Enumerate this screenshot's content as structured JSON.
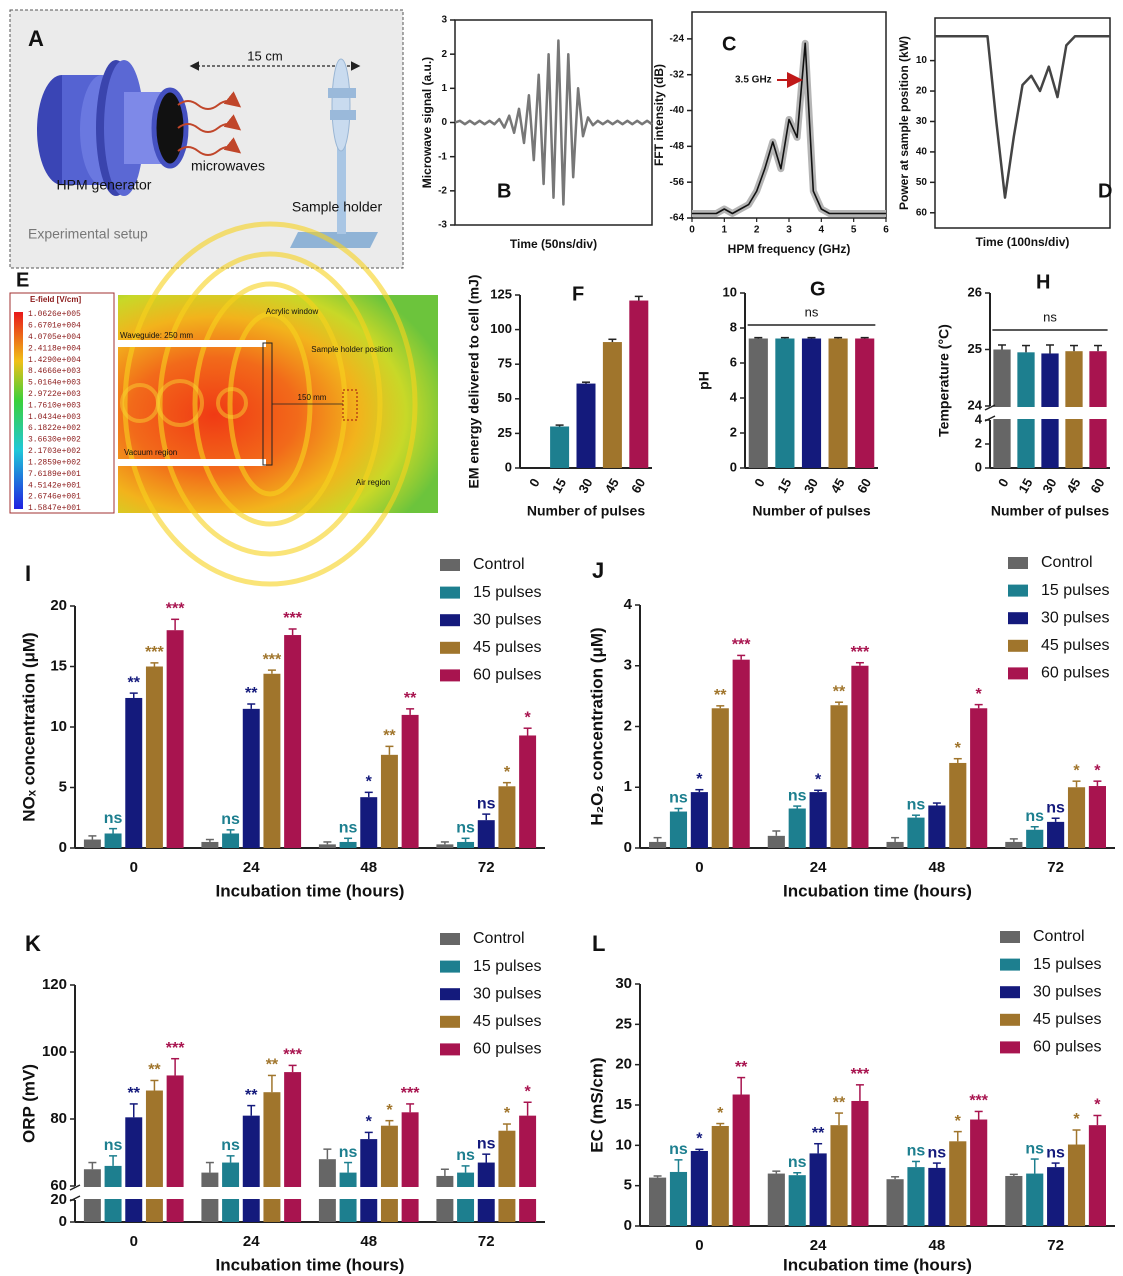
{
  "panel_a": {
    "label": "A",
    "distance": "15 cm",
    "generator": "HPM generator",
    "waves": "microwaves",
    "holder": "Sample holder",
    "caption": "Experimental setup"
  },
  "panel_e": {
    "label": "E",
    "legend_title": "E-field [V/cm]",
    "legend_values": [
      "1.0626e+005",
      "6.6701e+004",
      "4.0705e+004",
      "2.4118e+004",
      "1.4290e+004",
      "8.4666e+003",
      "5.0164e+003",
      "2.9722e+003",
      "1.7610e+003",
      "1.0434e+003",
      "6.1822e+002",
      "3.6630e+002",
      "2.1703e+002",
      "1.2859e+002",
      "7.6189e+001",
      "4.5142e+001",
      "2.6746e+001",
      "1.5847e+001"
    ],
    "annotations": [
      "Waveguide: 250 mm",
      "Acrylic window",
      "Sample holder position",
      "150 mm",
      "Vacuum region",
      "Air region"
    ]
  },
  "chart_data": [
    {
      "type": "line",
      "label": "B",
      "xlabel": "Time (50ns/div)",
      "ylabel": "Microwave signal (a.u.)",
      "xlim": [
        0,
        10
      ],
      "ylim": [
        -3,
        3
      ],
      "yticks": [
        -3,
        -2,
        -1,
        0,
        1,
        2,
        3
      ],
      "series": [
        {
          "color": "#777777",
          "x": [
            0,
            0.25,
            0.5,
            0.75,
            1,
            1.25,
            1.5,
            1.75,
            2,
            2.25,
            2.5,
            2.75,
            3,
            3.25,
            3.5,
            3.75,
            4,
            4.25,
            4.5,
            4.75,
            5,
            5.25,
            5.5,
            5.75,
            6,
            6.25,
            6.5,
            6.75,
            7,
            7.25,
            7.5,
            7.75,
            8,
            8.25,
            8.5,
            8.75,
            9,
            9.25,
            9.5,
            9.75,
            10
          ],
          "values": [
            0,
            0.05,
            -0.05,
            0.05,
            -0.05,
            0.05,
            -0.05,
            0.05,
            -0.05,
            0.1,
            -0.15,
            0.2,
            -0.3,
            0.4,
            -0.6,
            0.8,
            -1.1,
            1.4,
            -1.8,
            2.0,
            -2.2,
            2.4,
            -2.4,
            2.0,
            -1.6,
            1.0,
            -0.4,
            0.15,
            -0.08,
            0.05,
            -0.05,
            0.05,
            -0.05,
            0.05,
            -0.05,
            0.05,
            -0.05,
            0.05,
            -0.05,
            0.05,
            -0.05
          ]
        }
      ]
    },
    {
      "type": "line",
      "label": "C",
      "xlabel": "HPM frequency (GHz)",
      "ylabel": "FFT intensity (dB)",
      "annotation": "3.5 GHz",
      "xlim": [
        0,
        6
      ],
      "xticks": [
        0,
        1,
        2,
        3,
        4,
        5,
        6
      ],
      "ylim": [
        -64,
        -18
      ],
      "yticks": [
        -24,
        -32,
        -40,
        -48,
        -56,
        -64
      ],
      "series": [
        {
          "color": "#111111",
          "band_color": "#b5b5b5",
          "x": [
            0,
            0.25,
            0.5,
            0.75,
            1,
            1.25,
            1.5,
            1.75,
            2,
            2.25,
            2.5,
            2.75,
            3,
            3.25,
            3.5,
            3.75,
            4,
            4.25,
            4.5,
            4.75,
            5,
            5.25,
            5.5,
            5.75,
            6
          ],
          "values": [
            -63,
            -63,
            -63,
            -63,
            -62,
            -63,
            -62,
            -61,
            -58,
            -53,
            -47,
            -53,
            -42,
            -46,
            -25,
            -58,
            -62,
            -63,
            -63,
            -63,
            -63,
            -63,
            -63,
            -63,
            -63
          ]
        }
      ]
    },
    {
      "type": "line",
      "label": "D",
      "xlabel": "Time (100ns/div)",
      "ylabel": "Power at sample position (kW)",
      "xlim": [
        0,
        10
      ],
      "ylim": [
        65,
        -4
      ],
      "yticks": [
        10,
        20,
        30,
        40,
        50,
        60
      ],
      "series": [
        {
          "color": "#444444",
          "x": [
            0,
            0.5,
            1,
            1.5,
            2,
            2.5,
            3,
            3.5,
            4,
            4.5,
            5,
            5.5,
            6,
            6.5,
            7,
            7.5,
            8,
            8.5,
            9,
            9.5,
            10
          ],
          "values": [
            2,
            2,
            2,
            2,
            2,
            2,
            2,
            30,
            55,
            35,
            18,
            15,
            20,
            12,
            22,
            5,
            2,
            2,
            2,
            2,
            2
          ]
        }
      ]
    },
    {
      "type": "bar",
      "label": "F",
      "xlabel": "Number of pulses",
      "ylabel": "EM energy delivered to cell (mJ)",
      "categories": [
        "0",
        "15",
        "30",
        "45",
        "60"
      ],
      "values": [
        0,
        30,
        61,
        91,
        121
      ],
      "errors": [
        0,
        1,
        1,
        2,
        3
      ],
      "colors": [
        "#666666",
        "#1d7f8f",
        "#141a7c",
        "#a0752c",
        "#a8144f"
      ],
      "ylim": [
        0,
        125
      ],
      "yticks": [
        0,
        25,
        50,
        75,
        100,
        125
      ]
    },
    {
      "type": "bar",
      "label": "G",
      "xlabel": "Number of pulses",
      "ylabel": "pH",
      "annotation": "ns",
      "categories": [
        "0",
        "15",
        "30",
        "45",
        "60"
      ],
      "values": [
        7.4,
        7.4,
        7.4,
        7.4,
        7.4
      ],
      "errors": [
        0.05,
        0.05,
        0.05,
        0.05,
        0.05
      ],
      "colors": [
        "#666666",
        "#1d7f8f",
        "#141a7c",
        "#a0752c",
        "#a8144f"
      ],
      "ylim": [
        0,
        10
      ],
      "yticks": [
        0,
        2,
        4,
        6,
        8,
        10
      ]
    },
    {
      "type": "bar",
      "label": "H",
      "xlabel": "Number of pulses",
      "ylabel": "Temperature (°C)",
      "annotation": "ns",
      "categories": [
        "0",
        "15",
        "30",
        "45",
        "60"
      ],
      "values": [
        25.0,
        24.95,
        24.93,
        24.97,
        24.97
      ],
      "errors": [
        0.08,
        0.12,
        0.15,
        0.1,
        0.1
      ],
      "colors": [
        "#666666",
        "#1d7f8f",
        "#141a7c",
        "#a0752c",
        "#a8144f"
      ],
      "ylim": [
        0,
        26
      ],
      "ybreak": [
        4,
        24
      ],
      "yticks": [
        0,
        2,
        4,
        24,
        25,
        26
      ]
    },
    {
      "type": "bar",
      "label": "I",
      "xlabel": "Incubation time (hours)",
      "ylabel": "NOₓ concentration (μM)",
      "categories": [
        "0",
        "24",
        "48",
        "72"
      ],
      "ylim": [
        0,
        20
      ],
      "yticks": [
        0,
        5,
        10,
        15,
        20
      ],
      "series": [
        {
          "name": "Control",
          "color": "#666666",
          "values": [
            0.7,
            0.5,
            0.3,
            0.3
          ],
          "errors": [
            0.3,
            0.2,
            0.2,
            0.2
          ]
        },
        {
          "name": "15 pulses",
          "color": "#1d7f8f",
          "values": [
            1.2,
            1.2,
            0.5,
            0.5
          ],
          "errors": [
            0.4,
            0.3,
            0.3,
            0.3
          ],
          "sig": [
            "ns",
            "ns",
            "ns",
            "ns"
          ]
        },
        {
          "name": "30 pulses",
          "color": "#141a7c",
          "values": [
            12.4,
            11.5,
            4.2,
            2.3
          ],
          "errors": [
            0.4,
            0.4,
            0.4,
            0.5
          ],
          "sig": [
            "**",
            "**",
            "*",
            "ns"
          ]
        },
        {
          "name": "45 pulses",
          "color": "#a0752c",
          "values": [
            15.0,
            14.4,
            7.7,
            5.1
          ],
          "errors": [
            0.3,
            0.3,
            0.7,
            0.3
          ],
          "sig": [
            "***",
            "***",
            "**",
            "*"
          ]
        },
        {
          "name": "60 pulses",
          "color": "#a8144f",
          "values": [
            18.0,
            17.6,
            11.0,
            9.3
          ],
          "errors": [
            0.9,
            0.5,
            0.5,
            0.6
          ],
          "sig": [
            "***",
            "***",
            "**",
            "*"
          ]
        }
      ]
    },
    {
      "type": "bar",
      "label": "J",
      "xlabel": "Incubation time (hours)",
      "ylabel": "H₂O₂ concentration (μM)",
      "categories": [
        "0",
        "24",
        "48",
        "72"
      ],
      "ylim": [
        0,
        4
      ],
      "yticks": [
        0,
        1,
        2,
        3,
        4
      ],
      "series": [
        {
          "name": "Control",
          "color": "#666666",
          "values": [
            0.1,
            0.2,
            0.1,
            0.1
          ],
          "errors": [
            0.07,
            0.08,
            0.07,
            0.05
          ]
        },
        {
          "name": "15 pulses",
          "color": "#1d7f8f",
          "values": [
            0.6,
            0.65,
            0.5,
            0.3
          ],
          "errors": [
            0.05,
            0.04,
            0.04,
            0.05
          ],
          "sig": [
            "ns",
            "ns",
            "ns",
            "ns"
          ]
        },
        {
          "name": "30 pulses",
          "color": "#141a7c",
          "values": [
            0.92,
            0.92,
            0.7,
            0.43
          ],
          "errors": [
            0.04,
            0.03,
            0.04,
            0.06
          ],
          "sig": [
            "*",
            "*",
            null,
            "ns"
          ]
        },
        {
          "name": "45 pulses",
          "color": "#a0752c",
          "values": [
            2.3,
            2.35,
            1.4,
            1.0
          ],
          "errors": [
            0.04,
            0.05,
            0.07,
            0.1
          ],
          "sig": [
            "**",
            "**",
            "*",
            "*"
          ]
        },
        {
          "name": "60 pulses",
          "color": "#a8144f",
          "values": [
            3.1,
            3.0,
            2.3,
            1.02
          ],
          "errors": [
            0.07,
            0.05,
            0.06,
            0.08
          ],
          "sig": [
            "***",
            "***",
            "*",
            "*"
          ]
        }
      ]
    },
    {
      "type": "bar",
      "label": "K",
      "xlabel": "Incubation time (hours)",
      "ylabel": "ORP (mV)",
      "categories": [
        "0",
        "24",
        "48",
        "72"
      ],
      "ylim": [
        0,
        120
      ],
      "ybreak": [
        20,
        60
      ],
      "yticks": [
        0,
        20,
        60,
        80,
        100,
        120
      ],
      "series": [
        {
          "name": "Control",
          "color": "#666666",
          "values": [
            65,
            64,
            68,
            63
          ],
          "errors": [
            2,
            3,
            3,
            2
          ]
        },
        {
          "name": "15 pulses",
          "color": "#1d7f8f",
          "values": [
            66,
            67,
            64,
            64
          ],
          "errors": [
            3,
            2,
            3,
            2
          ],
          "sig": [
            "ns",
            "ns",
            "ns",
            "ns"
          ]
        },
        {
          "name": "30 pulses",
          "color": "#141a7c",
          "values": [
            80.5,
            81,
            74,
            67
          ],
          "errors": [
            4,
            3,
            2,
            2.5
          ],
          "sig": [
            "**",
            "**",
            "*",
            "ns"
          ]
        },
        {
          "name": "45 pulses",
          "color": "#a0752c",
          "values": [
            88.5,
            88,
            78,
            76.5
          ],
          "errors": [
            3,
            5,
            1.5,
            2
          ],
          "sig": [
            "**",
            "**",
            "*",
            "*"
          ]
        },
        {
          "name": "60 pulses",
          "color": "#a8144f",
          "values": [
            93,
            94,
            82,
            81
          ],
          "errors": [
            5,
            2,
            2.5,
            4
          ],
          "sig": [
            "***",
            "***",
            "***",
            "*"
          ]
        }
      ]
    },
    {
      "type": "bar",
      "label": "L",
      "xlabel": "Incubation time (hours)",
      "ylabel": "EC (mS/cm)",
      "categories": [
        "0",
        "24",
        "48",
        "72"
      ],
      "ylim": [
        0,
        30
      ],
      "yticks": [
        0,
        5,
        10,
        15,
        20,
        25,
        30
      ],
      "series": [
        {
          "name": "Control",
          "color": "#666666",
          "values": [
            6.0,
            6.5,
            5.8,
            6.2
          ],
          "errors": [
            0.2,
            0.3,
            0.3,
            0.2
          ]
        },
        {
          "name": "15 pulses",
          "color": "#1d7f8f",
          "values": [
            6.7,
            6.3,
            7.3,
            6.5
          ],
          "errors": [
            1.5,
            0.3,
            0.7,
            1.8
          ],
          "sig": [
            "ns",
            "ns",
            "ns",
            "ns"
          ]
        },
        {
          "name": "30 pulses",
          "color": "#141a7c",
          "values": [
            9.3,
            9.0,
            7.2,
            7.3
          ],
          "errors": [
            0.2,
            1.2,
            0.6,
            0.5
          ],
          "sig": [
            "*",
            "**",
            "ns",
            "ns"
          ]
        },
        {
          "name": "45 pulses",
          "color": "#a0752c",
          "values": [
            12.4,
            12.5,
            10.5,
            10.1
          ],
          "errors": [
            0.3,
            1.5,
            1.2,
            1.8
          ],
          "sig": [
            "*",
            "**",
            "*",
            "*"
          ]
        },
        {
          "name": "60 pulses",
          "color": "#a8144f",
          "values": [
            16.3,
            15.5,
            13.2,
            12.5
          ],
          "errors": [
            2.1,
            2.0,
            1.0,
            1.2
          ],
          "sig": [
            "**",
            "***",
            "***",
            "*"
          ]
        }
      ]
    }
  ]
}
